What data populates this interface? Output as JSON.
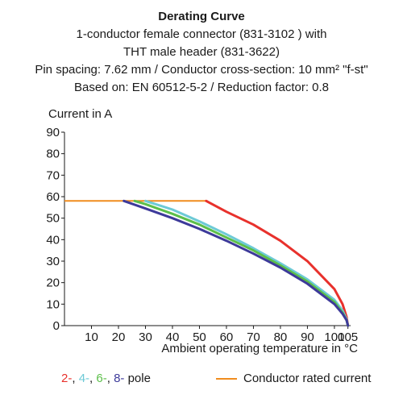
{
  "header": {
    "title": "Derating Curve",
    "line1": "1-conductor female connector (831-3102 ) with",
    "line2": "THT male header (831-3622)",
    "line3": "Pin spacing: 7.62 mm / Conductor cross-section: 10 mm² \"f-st\"",
    "line4": "Based on: EN 60512-5-2 / Reduction factor: 0.8"
  },
  "legend": {
    "poles": [
      {
        "text": "2-",
        "color": "#e8312c"
      },
      {
        "text": ", ",
        "color": "#1a1a1a"
      },
      {
        "text": "4-",
        "color": "#6dcad6"
      },
      {
        "text": ", ",
        "color": "#1a1a1a"
      },
      {
        "text": "6-",
        "color": "#5cbf4a"
      },
      {
        "text": ", ",
        "color": "#1a1a1a"
      },
      {
        "text": "8-",
        "color": "#3d3a9a"
      },
      {
        "text": " pole",
        "color": "#1a1a1a"
      }
    ],
    "rated_label": "Conductor rated current",
    "rated_color": "#f08c1e"
  },
  "chart_data": {
    "type": "line",
    "title": "Derating Curve",
    "xlabel": "Ambient operating temperature in °C",
    "ylabel": "Current in A",
    "xlim": [
      0,
      106
    ],
    "ylim": [
      0,
      90
    ],
    "xticks": [
      10,
      20,
      30,
      40,
      50,
      60,
      70,
      80,
      90,
      100,
      105
    ],
    "yticks": [
      0,
      10,
      20,
      30,
      40,
      50,
      60,
      70,
      80,
      90
    ],
    "grid": false,
    "rated_current": {
      "color": "#f08c1e",
      "x": [
        0,
        53
      ],
      "y": [
        58,
        58
      ]
    },
    "series": [
      {
        "color": "#e8312c",
        "x": [
          52.5,
          60,
          70,
          80,
          90,
          100,
          103,
          104.5,
          105
        ],
        "y": [
          58,
          53,
          47,
          39.5,
          30,
          17,
          10,
          4,
          0
        ]
      },
      {
        "color": "#6dcad6",
        "x": [
          30,
          40,
          50,
          60,
          70,
          80,
          90,
          100,
          103,
          104.5,
          105
        ],
        "y": [
          58,
          54,
          48.5,
          42.5,
          36,
          29,
          21.5,
          12,
          7,
          3,
          0
        ]
      },
      {
        "color": "#5cbf4a",
        "x": [
          26,
          30,
          40,
          50,
          60,
          70,
          80,
          90,
          100,
          103,
          104.5,
          105
        ],
        "y": [
          58,
          56.5,
          52,
          47,
          41,
          35,
          28,
          20.5,
          11,
          6,
          2.5,
          0
        ]
      },
      {
        "color": "#3d3a9a",
        "x": [
          22,
          30,
          40,
          50,
          60,
          70,
          80,
          90,
          100,
          103,
          104.5,
          105
        ],
        "y": [
          58,
          54.5,
          50,
          45,
          39.5,
          33.5,
          27,
          19.5,
          10,
          5.5,
          2.5,
          0
        ]
      }
    ]
  }
}
